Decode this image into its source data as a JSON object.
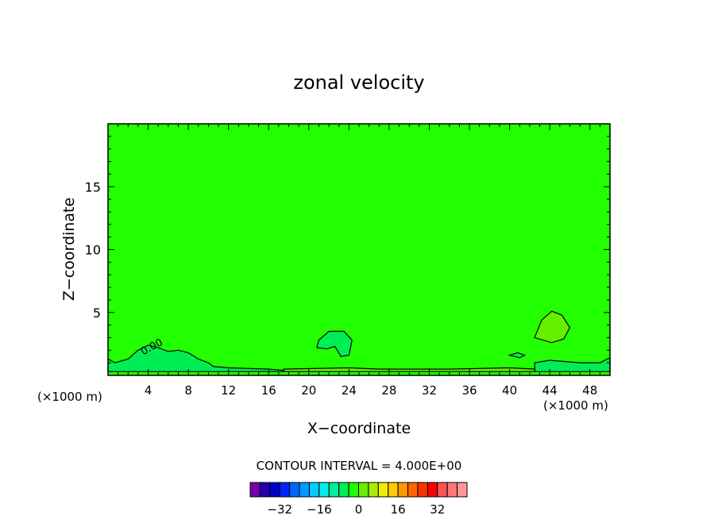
{
  "chart_data": {
    "type": "heatmap",
    "title": "zonal velocity",
    "xlabel": "X−coordinate",
    "ylabel": "Z−coordinate",
    "x_unit_left": "(×1000 m)",
    "x_unit_right": "(×1000 m)",
    "xlim": [
      0,
      50
    ],
    "ylim": [
      0,
      20
    ],
    "x_ticks": [
      4,
      8,
      12,
      16,
      20,
      24,
      28,
      32,
      36,
      40,
      44,
      48
    ],
    "y_ticks": [
      5,
      10,
      15
    ],
    "contour_interval_text": "CONTOUR INTERVAL = 4.000E+00",
    "contour_label": "0.00",
    "background_color": "#22ff00",
    "regions": [
      {
        "name": "lower-left-negative",
        "color": "#00ee55",
        "points": [
          [
            0,
            0.3
          ],
          [
            0,
            1.3
          ],
          [
            0.7,
            1.0
          ],
          [
            2.0,
            1.3
          ],
          [
            3.0,
            2.0
          ],
          [
            4.0,
            2.4
          ],
          [
            5.0,
            2.2
          ],
          [
            6.0,
            1.9
          ],
          [
            7.0,
            2.0
          ],
          [
            8.0,
            1.8
          ],
          [
            9.0,
            1.3
          ],
          [
            10.0,
            1.0
          ],
          [
            10.5,
            0.7
          ],
          [
            12.0,
            0.6
          ],
          [
            16.0,
            0.5
          ],
          [
            17.5,
            0.4
          ],
          [
            17.5,
            0.3
          ]
        ]
      },
      {
        "name": "mid-negative-blob",
        "color": "#00ee55",
        "points": [
          [
            20.8,
            2.2
          ],
          [
            21.0,
            2.8
          ],
          [
            22.0,
            3.5
          ],
          [
            23.5,
            3.5
          ],
          [
            24.3,
            2.8
          ],
          [
            24.0,
            1.6
          ],
          [
            23.2,
            1.5
          ],
          [
            22.6,
            2.3
          ],
          [
            21.8,
            2.1
          ]
        ]
      },
      {
        "name": "right-negative-band",
        "color": "#00ee55",
        "points": [
          [
            42.5,
            0.3
          ],
          [
            42.5,
            1.0
          ],
          [
            44.0,
            1.2
          ],
          [
            47.0,
            1.0
          ],
          [
            49.0,
            1.0
          ],
          [
            50.0,
            1.4
          ],
          [
            50.0,
            0.3
          ]
        ]
      },
      {
        "name": "small-negative-spot",
        "color": "#00ee55",
        "points": [
          [
            40.0,
            1.6
          ],
          [
            40.8,
            1.8
          ],
          [
            41.5,
            1.6
          ],
          [
            41.0,
            1.4
          ]
        ]
      },
      {
        "name": "right-positive-blob",
        "color": "#66f000",
        "points": [
          [
            42.5,
            3.0
          ],
          [
            43.2,
            4.4
          ],
          [
            44.2,
            5.1
          ],
          [
            45.2,
            4.8
          ],
          [
            46.0,
            3.8
          ],
          [
            45.4,
            2.9
          ],
          [
            44.2,
            2.6
          ]
        ]
      },
      {
        "name": "bottom-positive-band",
        "color": "#66f000",
        "points": [
          [
            17.5,
            0.3
          ],
          [
            17.5,
            0.5
          ],
          [
            24.0,
            0.6
          ],
          [
            27.0,
            0.5
          ],
          [
            34.0,
            0.5
          ],
          [
            40.0,
            0.6
          ],
          [
            42.5,
            0.5
          ],
          [
            42.5,
            0.3
          ]
        ]
      }
    ],
    "color_bar": {
      "colors": [
        "#7700aa",
        "#2200aa",
        "#0000cc",
        "#0022ff",
        "#0066ff",
        "#0099ff",
        "#00ccff",
        "#00eeee",
        "#00ee99",
        "#00ee55",
        "#22ff00",
        "#66f000",
        "#aaee00",
        "#eeee00",
        "#ffcc00",
        "#ff9900",
        "#ff6600",
        "#ff3300",
        "#ff0000",
        "#ff5555",
        "#ff7777",
        "#ff9999"
      ],
      "ticks": [
        {
          "label": "−32",
          "value": -32
        },
        {
          "label": "−16",
          "value": -16
        },
        {
          "label": "0",
          "value": 0
        },
        {
          "label": "16",
          "value": 16
        },
        {
          "label": "32",
          "value": 32
        }
      ],
      "vmin": -44,
      "vmax": 44
    },
    "grid": false,
    "legend": "bottom"
  }
}
